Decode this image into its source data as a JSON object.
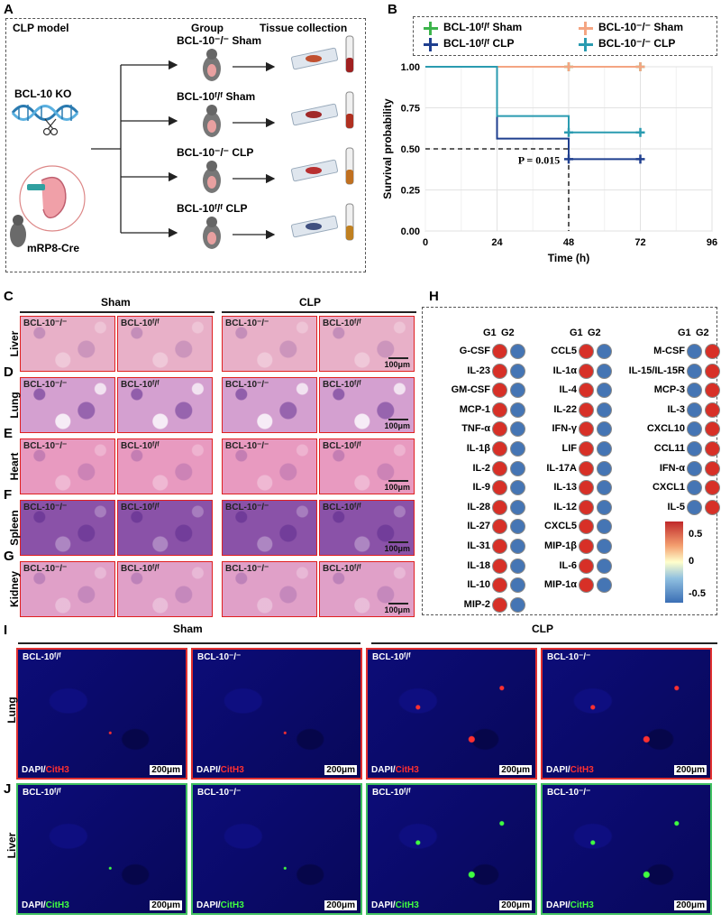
{
  "panels": {
    "A": "A",
    "B": "B",
    "C": "C",
    "D": "D",
    "E": "E",
    "F": "F",
    "G": "G",
    "H": "H",
    "I": "I",
    "J": "J"
  },
  "panelA": {
    "header_model": "CLP model",
    "header_group": "Group",
    "header_tissue": "Tissue collection",
    "ko_label": "BCL-10 KO",
    "cre_label": "mRP8-Cre",
    "groups": [
      "BCL-10⁻/⁻ Sham",
      "BCL-10ᶠ/ᶠ Sham",
      "BCL-10⁻/⁻ CLP",
      "BCL-10ᶠ/ᶠ CLP"
    ]
  },
  "chart_data": {
    "type": "line",
    "subtype": "kaplan-meier step",
    "title": "",
    "xlabel": "Time (h)",
    "ylabel": "Survival probability",
    "xlim": [
      0,
      96
    ],
    "ylim": [
      0,
      1
    ],
    "xticks": [
      "0",
      "24",
      "48",
      "72",
      "96"
    ],
    "yticks": [
      "0.00",
      "0.25",
      "0.50",
      "0.75",
      "1.00"
    ],
    "annotation": "P = 0.015",
    "series": [
      {
        "name": "BCL-10ᶠ/ᶠ Sham",
        "color": "#3cb44b",
        "steps": [
          [
            0,
            1.0
          ],
          [
            72,
            1.0
          ]
        ],
        "censor": [
          [
            48,
            1.0
          ],
          [
            72,
            1.0
          ]
        ]
      },
      {
        "name": "BCL-10⁻/⁻ Sham",
        "color": "#f4a582",
        "steps": [
          [
            0,
            1.0
          ],
          [
            72,
            1.0
          ]
        ],
        "censor": [
          [
            48,
            1.0
          ],
          [
            72,
            1.0
          ]
        ]
      },
      {
        "name": "BCL-10ᶠ/ᶠ CLP",
        "color": "#1f3f8f",
        "steps": [
          [
            0,
            1.0
          ],
          [
            24,
            1.0
          ],
          [
            24,
            0.5625
          ],
          [
            48,
            0.5625
          ],
          [
            48,
            0.4375
          ],
          [
            72,
            0.4375
          ]
        ],
        "censor": [
          [
            48,
            0.4375
          ],
          [
            72,
            0.4375
          ]
        ]
      },
      {
        "name": "BCL-10⁻/⁻ CLP",
        "color": "#2a9bb0",
        "steps": [
          [
            0,
            1.0
          ],
          [
            24,
            1.0
          ],
          [
            24,
            0.7
          ],
          [
            48,
            0.7
          ],
          [
            48,
            0.6
          ],
          [
            72,
            0.6
          ]
        ],
        "censor": [
          [
            48,
            0.6
          ],
          [
            72,
            0.6
          ]
        ]
      }
    ],
    "median_line": {
      "y": 0.5,
      "x": 48
    }
  },
  "histology": {
    "col_sham": "Sham",
    "col_clp": "CLP",
    "genotypes": [
      "BCL-10⁻/⁻",
      "BCL-10ᶠ/ᶠ",
      "BCL-10⁻/⁻",
      "BCL-10ᶠ/ᶠ"
    ],
    "scale": "100μm",
    "rows": [
      {
        "organ": "Liver",
        "color": "#e8b0c8"
      },
      {
        "organ": "Lung",
        "color": "#d4a0d0"
      },
      {
        "organ": "Heart",
        "color": "#e89ac0"
      },
      {
        "organ": "Spleen",
        "color": "#8a52a8"
      },
      {
        "organ": "Kidney",
        "color": "#e0a0c8"
      }
    ]
  },
  "heatmap": {
    "col_labels": [
      "G1",
      "G2"
    ],
    "legend_ticks": [
      "0.5",
      "0",
      "-0.5"
    ],
    "columns": [
      [
        {
          "name": "G-CSF",
          "g1": "high",
          "g2": "low"
        },
        {
          "name": "IL-23",
          "g1": "high",
          "g2": "low"
        },
        {
          "name": "GM-CSF",
          "g1": "high",
          "g2": "low"
        },
        {
          "name": "MCP-1",
          "g1": "high",
          "g2": "low"
        },
        {
          "name": "TNF-α",
          "g1": "high",
          "g2": "low"
        },
        {
          "name": "IL-1β",
          "g1": "high",
          "g2": "low"
        },
        {
          "name": "IL-2",
          "g1": "high",
          "g2": "low"
        },
        {
          "name": "IL-9",
          "g1": "high",
          "g2": "low"
        },
        {
          "name": "IL-28",
          "g1": "high",
          "g2": "low"
        },
        {
          "name": "IL-27",
          "g1": "high",
          "g2": "low"
        },
        {
          "name": "IL-31",
          "g1": "high",
          "g2": "low"
        },
        {
          "name": "IL-18",
          "g1": "high",
          "g2": "low"
        },
        {
          "name": "IL-10",
          "g1": "high",
          "g2": "low"
        },
        {
          "name": "MIP-2",
          "g1": "high",
          "g2": "low"
        }
      ],
      [
        {
          "name": "CCL5",
          "g1": "high",
          "g2": "low"
        },
        {
          "name": "IL-1α",
          "g1": "high",
          "g2": "low"
        },
        {
          "name": "IL-4",
          "g1": "high",
          "g2": "low"
        },
        {
          "name": "IL-22",
          "g1": "high",
          "g2": "low"
        },
        {
          "name": "IFN-γ",
          "g1": "high",
          "g2": "low"
        },
        {
          "name": "LIF",
          "g1": "high",
          "g2": "low"
        },
        {
          "name": "IL-17A",
          "g1": "high",
          "g2": "low"
        },
        {
          "name": "IL-13",
          "g1": "high",
          "g2": "low"
        },
        {
          "name": "IL-12",
          "g1": "high",
          "g2": "low"
        },
        {
          "name": "CXCL5",
          "g1": "high",
          "g2": "low"
        },
        {
          "name": "MIP-1β",
          "g1": "high",
          "g2": "low"
        },
        {
          "name": "IL-6",
          "g1": "high",
          "g2": "low"
        },
        {
          "name": "MIP-1α",
          "g1": "high",
          "g2": "low"
        }
      ],
      [
        {
          "name": "M-CSF",
          "g1": "low",
          "g2": "high"
        },
        {
          "name": "IL-15/IL-15R",
          "g1": "low",
          "g2": "high"
        },
        {
          "name": "MCP-3",
          "g1": "low",
          "g2": "high"
        },
        {
          "name": "IL-3",
          "g1": "low",
          "g2": "high"
        },
        {
          "name": "CXCL10",
          "g1": "low",
          "g2": "high"
        },
        {
          "name": "CCL11",
          "g1": "low",
          "g2": "high"
        },
        {
          "name": "IFN-α",
          "g1": "low",
          "g2": "high"
        },
        {
          "name": "CXCL1",
          "g1": "low",
          "g2": "high"
        },
        {
          "name": "IL-5",
          "g1": "low",
          "g2": "high"
        }
      ]
    ],
    "colors": {
      "high": "#d73027",
      "low": "#4575b4"
    }
  },
  "fluorescence": {
    "col_sham": "Sham",
    "col_clp": "CLP",
    "genotypes": [
      "BCL-10ᶠ/ᶠ",
      "BCL-10⁻/⁻",
      "BCL-10ᶠ/ᶠ",
      "BCL-10⁻/⁻"
    ],
    "scale": "200μm",
    "lung": {
      "organ": "Lung",
      "dapi": "DAPI/",
      "marker": "CitH3",
      "border": "#e03030",
      "marker_color": "#ff3030"
    },
    "liver": {
      "organ": "Liver",
      "dapi": "DAPI/",
      "marker": "CitH3",
      "border": "#40c060",
      "marker_color": "#40ff40"
    }
  }
}
